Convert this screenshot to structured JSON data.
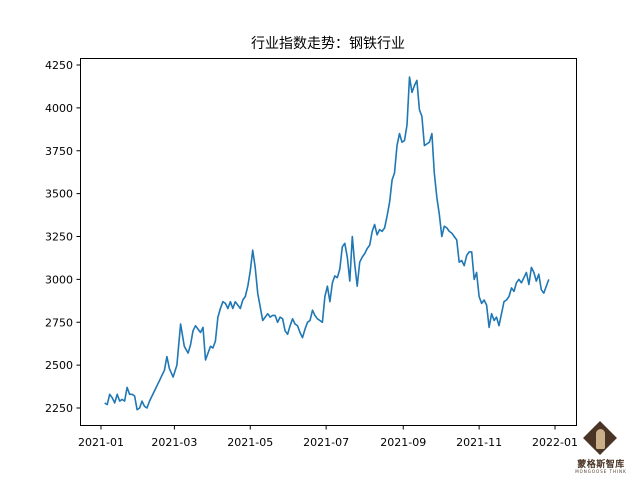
{
  "chart_data": {
    "type": "line",
    "title": "行业指数走势：钢铁行业",
    "xlabel": "",
    "ylabel": "",
    "ylim": [
      2150,
      4290
    ],
    "xlim": [
      "2020-12-20",
      "2022-01-12"
    ],
    "grid": false,
    "legend": null,
    "line_color": "#1f77b4",
    "y_ticks": [
      2250,
      2500,
      2750,
      3000,
      3250,
      3500,
      3750,
      4000,
      4250
    ],
    "x_ticks": [
      "2021-01",
      "2021-03",
      "2021-05",
      "2021-07",
      "2021-09",
      "2021-11",
      "2022-01"
    ],
    "series": [
      {
        "name": "钢铁行业",
        "x_day": [
          3,
          5,
          7,
          9,
          11,
          13,
          15,
          17,
          19,
          21,
          23,
          25,
          27,
          29,
          31,
          33,
          35,
          37,
          39,
          41,
          43,
          45,
          47,
          49,
          51,
          53,
          55,
          58,
          61,
          64,
          67,
          70,
          72,
          74,
          76,
          78,
          80,
          82,
          84,
          86,
          88,
          90,
          92,
          94,
          96,
          98,
          100,
          102,
          104,
          106,
          108,
          110,
          112,
          114,
          116,
          118,
          120,
          122,
          124,
          126,
          128,
          130,
          132,
          134,
          136,
          138,
          140,
          142,
          144,
          146,
          148,
          150,
          152,
          154,
          156,
          158,
          160,
          162,
          164,
          166,
          168,
          170,
          172,
          174,
          176,
          178,
          180,
          182,
          184,
          186,
          188,
          190,
          192,
          194,
          196,
          198,
          200,
          202,
          204,
          206,
          208,
          210,
          212,
          214,
          216,
          218,
          220,
          222,
          224,
          226,
          228,
          230,
          232,
          234,
          236,
          238,
          240,
          242,
          244,
          246,
          248,
          250,
          252,
          254,
          256,
          258,
          260,
          262,
          264,
          266,
          268,
          270,
          272,
          274,
          276,
          278,
          280,
          282,
          284,
          286,
          288,
          290,
          292,
          294,
          296,
          298,
          300,
          302,
          304,
          306,
          308,
          310,
          312,
          314,
          316,
          318,
          320,
          322,
          324,
          326,
          328,
          330,
          332,
          334,
          336,
          338,
          340,
          342,
          344,
          346,
          348,
          350,
          352,
          354,
          356,
          358,
          360,
          362,
          364
        ],
        "values": [
          2280,
          2270,
          2330,
          2310,
          2280,
          2330,
          2290,
          2300,
          2290,
          2370,
          2330,
          2330,
          2320,
          2240,
          2250,
          2290,
          2260,
          2250,
          2290,
          2320,
          2350,
          2380,
          2410,
          2440,
          2470,
          2550,
          2480,
          2430,
          2500,
          2740,
          2610,
          2570,
          2620,
          2700,
          2730,
          2710,
          2690,
          2720,
          2530,
          2570,
          2610,
          2600,
          2640,
          2780,
          2830,
          2870,
          2860,
          2830,
          2870,
          2830,
          2870,
          2850,
          2830,
          2880,
          2900,
          2960,
          3050,
          3170,
          3070,
          2920,
          2840,
          2760,
          2780,
          2800,
          2780,
          2790,
          2790,
          2750,
          2780,
          2770,
          2700,
          2680,
          2730,
          2770,
          2740,
          2730,
          2690,
          2660,
          2710,
          2750,
          2760,
          2820,
          2790,
          2770,
          2760,
          2750,
          2900,
          2960,
          2870,
          2980,
          3020,
          3010,
          3060,
          3190,
          3210,
          3130,
          2990,
          3250,
          3090,
          2960,
          3100,
          3130,
          3150,
          3180,
          3200,
          3280,
          3320,
          3260,
          3290,
          3280,
          3300,
          3370,
          3450,
          3580,
          3620,
          3780,
          3850,
          3800,
          3810,
          3900,
          4180,
          4090,
          4130,
          4160,
          3990,
          3950,
          3780,
          3790,
          3800,
          3850,
          3620,
          3480,
          3380,
          3250,
          3310,
          3300,
          3280,
          3270,
          3250,
          3230,
          3100,
          3110,
          3080,
          3140,
          3160,
          3160,
          3000,
          3040,
          2900,
          2860,
          2880,
          2850,
          2720,
          2800,
          2760,
          2780,
          2730,
          2800,
          2870,
          2880,
          2900,
          2950,
          2930,
          2980,
          3000,
          2980,
          3010,
          3040,
          2970,
          3070,
          3040,
          2990,
          3030,
          2940,
          2920,
          2960,
          3000
        ]
      }
    ]
  },
  "watermark": {
    "name_cn": "蒙格斯智库",
    "name_en": "MONGOOSE THINK"
  }
}
